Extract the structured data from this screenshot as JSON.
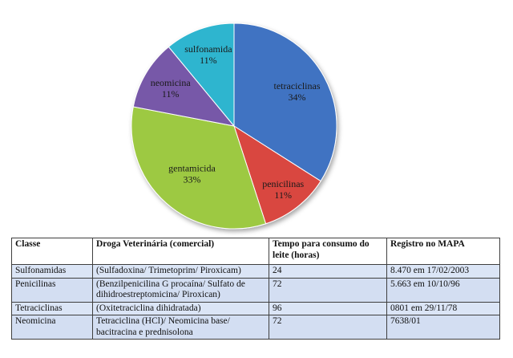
{
  "chart_data": {
    "type": "pie",
    "slices": [
      {
        "label": "tetraciclinas",
        "pct_label": "34%",
        "value": 34,
        "color": "#3f73c2"
      },
      {
        "label": "penicilinas",
        "pct_label": "11%",
        "value": 11,
        "color": "#d9463f"
      },
      {
        "label": "gentamicida",
        "pct_label": "33%",
        "value": 33,
        "color": "#9dc942"
      },
      {
        "label": "neomicina",
        "pct_label": "11%",
        "value": 11,
        "color": "#7758a8"
      },
      {
        "label": "sulfonamida",
        "pct_label": "11%",
        "value": 11,
        "color": "#2eb5cf"
      }
    ]
  },
  "table": {
    "headers": [
      "Classe",
      "Droga Veterinária (comercial)",
      "Tempo para consumo do leite (horas)",
      "Registro no MAPA"
    ],
    "rows": [
      {
        "classe": "Sulfonamidas",
        "droga": "(Sulfadoxina/ Trimetoprim/  Piroxicam)",
        "tempo": "24",
        "registro": "8.470 em 17/02/2003"
      },
      {
        "classe": "Penicilinas",
        "droga": "(Benzilpenicilina  G procaína/ Sulfato de dihidroestreptomicina/ Piroxican)",
        "tempo": "72",
        "registro": "5.663 em  10/10/96"
      },
      {
        "classe": "Tetraciclinas",
        "droga": "(Oxitetraciclina dihidratada)",
        "tempo": "96",
        "registro": "0801 em 29/11/78"
      },
      {
        "classe": "Neomicina",
        "droga": "Tetraciclina (HCl)/ Neomicina base/ bacitracina e prednisolona",
        "tempo": "72",
        "registro": "7638/01"
      }
    ]
  }
}
